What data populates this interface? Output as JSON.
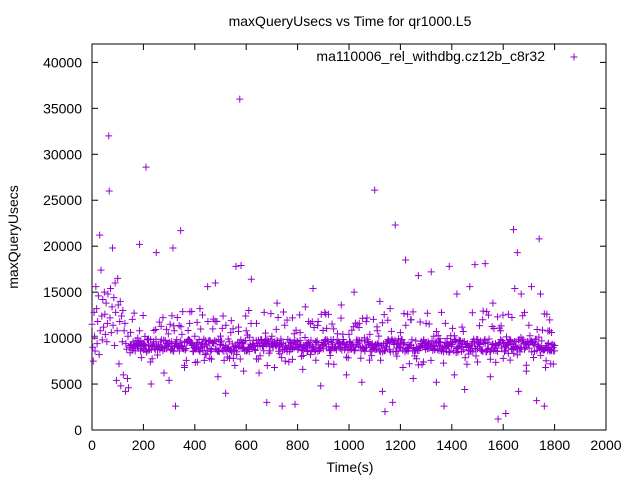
{
  "chart_data": {
    "type": "scatter",
    "title": "maxQueryUsecs vs Time for qr1000.L5",
    "xlabel": "Time(s)",
    "ylabel": "maxQueryUsecs",
    "xlim": [
      0,
      2000
    ],
    "ylim": [
      0,
      42000
    ],
    "x_ticks": [
      "0",
      "200",
      "400",
      "600",
      "800",
      "1000",
      "1200",
      "1400",
      "1600",
      "1800",
      "2000"
    ],
    "y_ticks": [
      "0",
      "5000",
      "10000",
      "15000",
      "20000",
      "25000",
      "30000",
      "35000",
      "40000"
    ],
    "legend": {
      "placement": "top-right",
      "text": "ma110006_rel_withdbg.cz12b_c8r32"
    },
    "marker": "plus",
    "color": "#9400d3",
    "grid": false,
    "series": [
      {
        "points": [
          [
            0,
            11500
          ],
          [
            3,
            9000
          ],
          [
            5,
            7500
          ],
          [
            8,
            12800
          ],
          [
            10,
            10200
          ],
          [
            12,
            8600
          ],
          [
            15,
            15600
          ],
          [
            18,
            13200
          ],
          [
            20,
            9400
          ],
          [
            22,
            11800
          ],
          [
            25,
            14600
          ],
          [
            28,
            8200
          ],
          [
            30,
            21200
          ],
          [
            32,
            10800
          ],
          [
            35,
            17400
          ],
          [
            38,
            12400
          ],
          [
            40,
            9800
          ],
          [
            42,
            14200
          ],
          [
            45,
            11200
          ],
          [
            48,
            15000
          ],
          [
            50,
            12600
          ],
          [
            52,
            10400
          ],
          [
            55,
            13800
          ],
          [
            58,
            9600
          ],
          [
            60,
            11600
          ],
          [
            62,
            14800
          ],
          [
            65,
            32000
          ],
          [
            67,
            26000
          ],
          [
            70,
            12200
          ],
          [
            72,
            15400
          ],
          [
            75,
            10600
          ],
          [
            78,
            13400
          ],
          [
            80,
            19800
          ],
          [
            82,
            11400
          ],
          [
            85,
            14400
          ],
          [
            88,
            9200
          ],
          [
            90,
            16000
          ],
          [
            92,
            12800
          ],
          [
            95,
            5400
          ],
          [
            98,
            10800
          ],
          [
            100,
            16500
          ],
          [
            102,
            13600
          ],
          [
            105,
            7200
          ],
          [
            108,
            11800
          ],
          [
            110,
            14000
          ],
          [
            112,
            4800
          ],
          [
            115,
            12400
          ],
          [
            118,
            9600
          ],
          [
            120,
            13000
          ],
          [
            122,
            6000
          ],
          [
            125,
            10800
          ],
          [
            128,
            11600
          ],
          [
            130,
            4200
          ],
          [
            132,
            9400
          ],
          [
            135,
            8800
          ],
          [
            138,
            5600
          ],
          [
            140,
            10200
          ],
          [
            142,
            4600
          ],
          [
            145,
            9000
          ],
          [
            148,
            8400
          ],
          [
            150,
            9200
          ],
          [
            160,
            9600
          ],
          [
            170,
            9100
          ],
          [
            180,
            9400
          ],
          [
            185,
            20200
          ],
          [
            190,
            9700
          ],
          [
            200,
            9300
          ],
          [
            210,
            28600
          ],
          [
            215,
            9800
          ],
          [
            220,
            9200
          ],
          [
            230,
            5000
          ],
          [
            240,
            9600
          ],
          [
            250,
            19300
          ],
          [
            260,
            9100
          ],
          [
            270,
            9800
          ],
          [
            280,
            6200
          ],
          [
            290,
            9400
          ],
          [
            300,
            5400
          ],
          [
            310,
            9600
          ],
          [
            315,
            19800
          ],
          [
            320,
            10800
          ],
          [
            325,
            2600
          ],
          [
            330,
            9200
          ],
          [
            340,
            8600
          ],
          [
            345,
            21700
          ],
          [
            350,
            10400
          ],
          [
            360,
            6800
          ],
          [
            370,
            9500
          ],
          [
            380,
            11600
          ],
          [
            390,
            9200
          ],
          [
            400,
            10200
          ],
          [
            410,
            7400
          ],
          [
            420,
            13200
          ],
          [
            430,
            9400
          ],
          [
            440,
            8200
          ],
          [
            450,
            15600
          ],
          [
            460,
            9700
          ],
          [
            470,
            11000
          ],
          [
            480,
            16000
          ],
          [
            490,
            5800
          ],
          [
            500,
            9300
          ],
          [
            510,
            12400
          ],
          [
            520,
            4000
          ],
          [
            530,
            9900
          ],
          [
            540,
            10600
          ],
          [
            550,
            7800
          ],
          [
            560,
            17800
          ],
          [
            570,
            11200
          ],
          [
            575,
            36000
          ],
          [
            580,
            17900
          ],
          [
            585,
            9400
          ],
          [
            590,
            6400
          ],
          [
            600,
            10800
          ],
          [
            610,
            13000
          ],
          [
            620,
            16400
          ],
          [
            630,
            9200
          ],
          [
            640,
            11600
          ],
          [
            650,
            6200
          ],
          [
            660,
            9800
          ],
          [
            670,
            12800
          ],
          [
            680,
            3000
          ],
          [
            690,
            9400
          ],
          [
            700,
            10200
          ],
          [
            710,
            6800
          ],
          [
            720,
            13800
          ],
          [
            730,
            9300
          ],
          [
            740,
            2600
          ],
          [
            750,
            11400
          ],
          [
            760,
            8800
          ],
          [
            770,
            9700
          ],
          [
            780,
            12200
          ],
          [
            790,
            2800
          ],
          [
            800,
            9300
          ],
          [
            810,
            10600
          ],
          [
            820,
            6600
          ],
          [
            830,
            13400
          ],
          [
            840,
            9400
          ],
          [
            850,
            8200
          ],
          [
            860,
            15400
          ],
          [
            870,
            9600
          ],
          [
            880,
            11800
          ],
          [
            890,
            4800
          ],
          [
            900,
            9300
          ],
          [
            910,
            12600
          ],
          [
            920,
            7200
          ],
          [
            930,
            9800
          ],
          [
            940,
            11000
          ],
          [
            950,
            2600
          ],
          [
            960,
            9400
          ],
          [
            970,
            13600
          ],
          [
            980,
            9500
          ],
          [
            990,
            6000
          ],
          [
            1000,
            10400
          ],
          [
            1010,
            8800
          ],
          [
            1020,
            15000
          ],
          [
            1030,
            9300
          ],
          [
            1040,
            11600
          ],
          [
            1050,
            5200
          ],
          [
            1060,
            9700
          ],
          [
            1070,
            12200
          ],
          [
            1080,
            7600
          ],
          [
            1090,
            9400
          ],
          [
            1100,
            26100
          ],
          [
            1110,
            10800
          ],
          [
            1120,
            14000
          ],
          [
            1130,
            4200
          ],
          [
            1140,
            2000
          ],
          [
            1150,
            9600
          ],
          [
            1160,
            13200
          ],
          [
            1170,
            3000
          ],
          [
            1180,
            22300
          ],
          [
            1190,
            9400
          ],
          [
            1200,
            10600
          ],
          [
            1210,
            6800
          ],
          [
            1220,
            18500
          ],
          [
            1230,
            9300
          ],
          [
            1240,
            12000
          ],
          [
            1250,
            5600
          ],
          [
            1260,
            9700
          ],
          [
            1270,
            16800
          ],
          [
            1280,
            9400
          ],
          [
            1290,
            7400
          ],
          [
            1300,
            11600
          ],
          [
            1310,
            9300
          ],
          [
            1320,
            17200
          ],
          [
            1330,
            10200
          ],
          [
            1340,
            5200
          ],
          [
            1350,
            9600
          ],
          [
            1360,
            12800
          ],
          [
            1370,
            2600
          ],
          [
            1380,
            9400
          ],
          [
            1390,
            17800
          ],
          [
            1400,
            9300
          ],
          [
            1410,
            6000
          ],
          [
            1420,
            14800
          ],
          [
            1430,
            9700
          ],
          [
            1440,
            11200
          ],
          [
            1450,
            4400
          ],
          [
            1460,
            9400
          ],
          [
            1470,
            15600
          ],
          [
            1480,
            9600
          ],
          [
            1490,
            18000
          ],
          [
            1500,
            7400
          ],
          [
            1510,
            9300
          ],
          [
            1520,
            12000
          ],
          [
            1530,
            18100
          ],
          [
            1540,
            9500
          ],
          [
            1550,
            5800
          ],
          [
            1560,
            13800
          ],
          [
            1570,
            9400
          ],
          [
            1580,
            1200
          ],
          [
            1590,
            10800
          ],
          [
            1600,
            7800
          ],
          [
            1610,
            1800
          ],
          [
            1620,
            12600
          ],
          [
            1630,
            9300
          ],
          [
            1640,
            21800
          ],
          [
            1645,
            15400
          ],
          [
            1650,
            9600
          ],
          [
            1655,
            19300
          ],
          [
            1660,
            4200
          ],
          [
            1670,
            14800
          ],
          [
            1680,
            9400
          ],
          [
            1690,
            6400
          ],
          [
            1700,
            11400
          ],
          [
            1710,
            15600
          ],
          [
            1720,
            9300
          ],
          [
            1730,
            3200
          ],
          [
            1740,
            20800
          ],
          [
            1745,
            14800
          ],
          [
            1750,
            9700
          ],
          [
            1760,
            2600
          ],
          [
            1765,
            6800
          ],
          [
            1770,
            12600
          ],
          [
            1775,
            9400
          ],
          [
            1780,
            10800
          ],
          [
            1785,
            7200
          ],
          [
            1790,
            9300
          ],
          [
            1795,
            8600
          ],
          [
            1800,
            9200
          ]
        ]
      }
    ]
  }
}
